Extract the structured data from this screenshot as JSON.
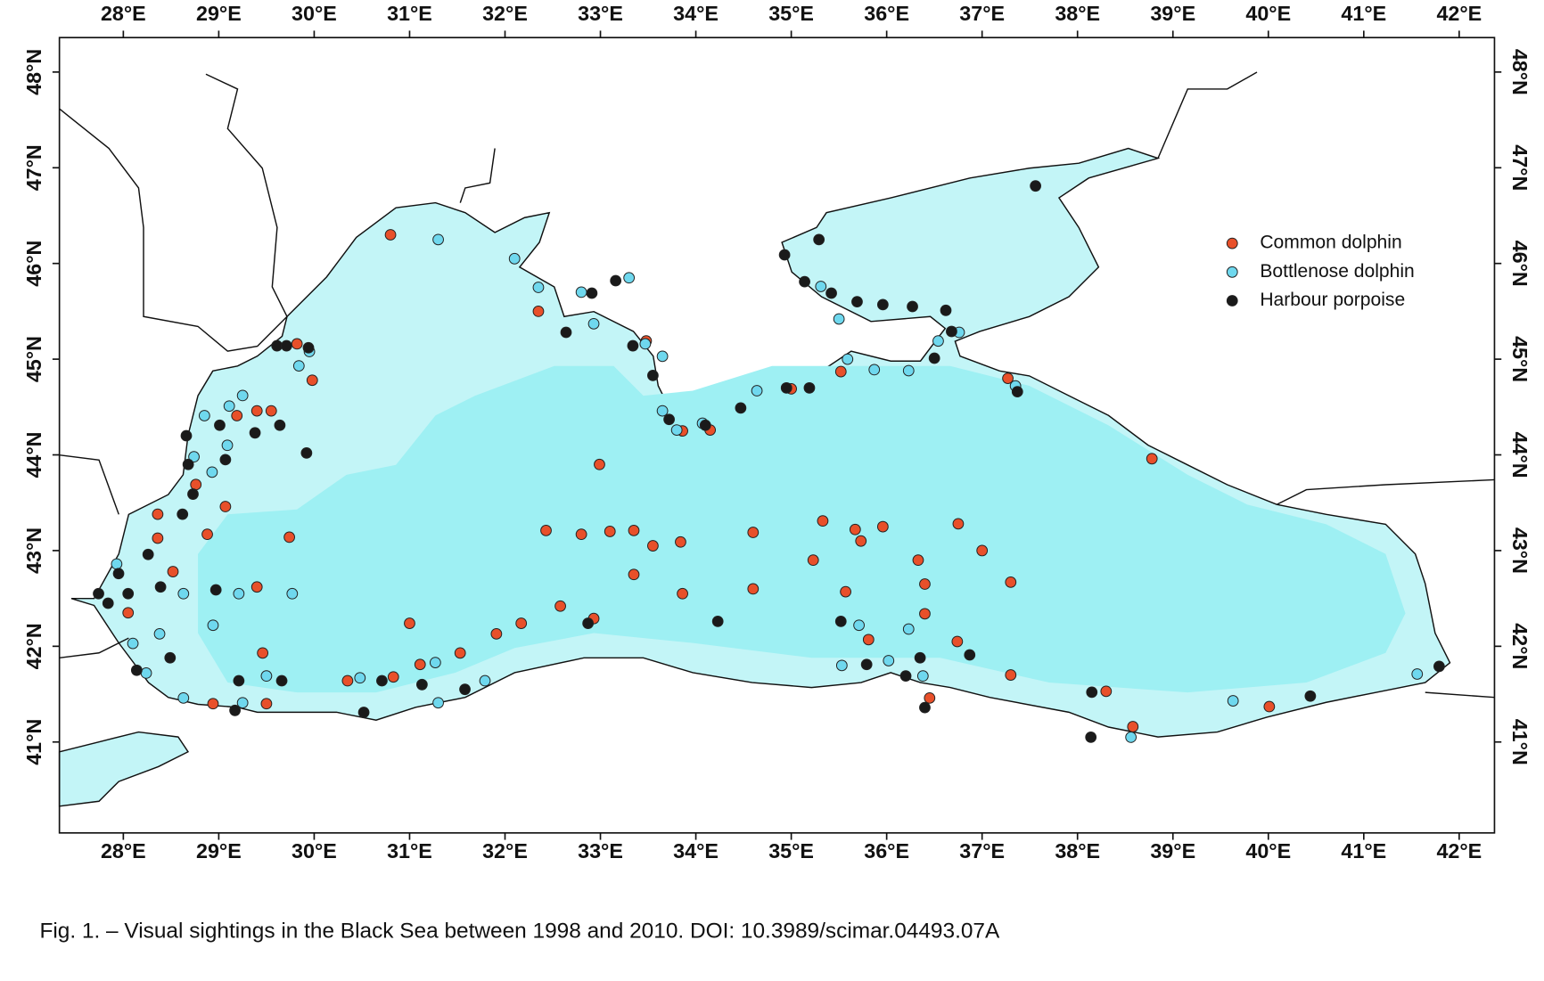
{
  "chart_data": {
    "type": "scatter",
    "caption": "Fig. 1. – Visual sightings in the Black Sea between 1998 and 2010. DOI: 10.3989/scimar.04493.07A",
    "xlim": [
      27.33,
      42.37
    ],
    "ylim": [
      40.05,
      48.36
    ],
    "xticks": [
      {
        "value": 28,
        "label": "28°E"
      },
      {
        "value": 29,
        "label": "29°E"
      },
      {
        "value": 30,
        "label": "30°E"
      },
      {
        "value": 31,
        "label": "31°E"
      },
      {
        "value": 32,
        "label": "32°E"
      },
      {
        "value": 33,
        "label": "33°E"
      },
      {
        "value": 34,
        "label": "34°E"
      },
      {
        "value": 35,
        "label": "35°E"
      },
      {
        "value": 36,
        "label": "36°E"
      },
      {
        "value": 37,
        "label": "37°E"
      },
      {
        "value": 38,
        "label": "38°E"
      },
      {
        "value": 39,
        "label": "39°E"
      },
      {
        "value": 40,
        "label": "40°E"
      },
      {
        "value": 41,
        "label": "41°E"
      },
      {
        "value": 42,
        "label": "42°E"
      }
    ],
    "yticks": [
      {
        "value": 41,
        "label": "41°N"
      },
      {
        "value": 42,
        "label": "42°N"
      },
      {
        "value": 43,
        "label": "43°N"
      },
      {
        "value": 44,
        "label": "44°N"
      },
      {
        "value": 45,
        "label": "45°N"
      },
      {
        "value": 46,
        "label": "46°N"
      },
      {
        "value": 47,
        "label": "47°N"
      },
      {
        "value": 48,
        "label": "48°N"
      }
    ],
    "legend": "upper right",
    "series": [
      {
        "name": "Common dolphin",
        "color": "#e8502a",
        "x": [
          30.8,
          32.35,
          32.43,
          32.8,
          33.1,
          33.35,
          33.55,
          33.84,
          34.6,
          35.33,
          35.67,
          35.96,
          36.75,
          37.0,
          36.33,
          36.4,
          35.73,
          35.23,
          34.6,
          33.86,
          33.35,
          32.93,
          32.58,
          32.17,
          31.91,
          31.53,
          31.11,
          30.83,
          30.35,
          31.0,
          29.74,
          29.07,
          28.88,
          29.4,
          29.46,
          29.5,
          28.94,
          28.52,
          28.05,
          28.36,
          29.19,
          29.4,
          29.82,
          29.98,
          29.55,
          28.76,
          28.36,
          37.3,
          37.3,
          38.3,
          38.58,
          40.01,
          38.78,
          37.27,
          35.52,
          35.0,
          36.45,
          36.74,
          36.4,
          33.86,
          34.15,
          35.57,
          35.81,
          32.99,
          33.48
        ],
        "values": [
          46.3,
          45.5,
          43.21,
          43.17,
          43.2,
          43.21,
          43.05,
          43.09,
          43.19,
          43.31,
          43.22,
          43.25,
          43.28,
          43.0,
          42.9,
          42.65,
          43.1,
          42.9,
          42.6,
          42.55,
          42.75,
          42.29,
          42.42,
          42.24,
          42.13,
          41.93,
          41.81,
          41.68,
          41.64,
          42.24,
          43.14,
          43.46,
          43.17,
          42.62,
          41.93,
          41.4,
          41.4,
          42.78,
          42.35,
          43.38,
          44.41,
          44.46,
          45.16,
          44.78,
          44.46,
          43.69,
          43.13,
          42.67,
          41.7,
          41.53,
          41.16,
          41.37,
          43.96,
          44.8,
          44.87,
          44.69,
          41.46,
          42.05,
          42.34,
          44.25,
          44.26,
          42.57,
          42.07,
          43.9,
          45.19
        ]
      },
      {
        "name": "Bottlenose dolphin",
        "color": "#6fd8ee",
        "x": [
          31.3,
          32.1,
          32.35,
          33.3,
          32.8,
          32.93,
          33.47,
          33.65,
          33.65,
          33.8,
          34.07,
          34.64,
          35.31,
          35.5,
          35.59,
          35.87,
          36.23,
          36.54,
          36.76,
          37.35,
          41.56,
          39.63,
          38.56,
          36.38,
          35.53,
          36.02,
          36.23,
          35.71,
          31.3,
          30.48,
          31.79,
          31.27,
          29.77,
          29.21,
          28.94,
          29.5,
          29.25,
          28.63,
          28.24,
          28.1,
          27.93,
          28.38,
          28.63,
          28.93,
          29.09,
          29.25,
          29.84,
          29.95,
          29.11,
          28.74,
          28.85
        ],
        "values": [
          46.25,
          46.05,
          45.75,
          45.85,
          45.7,
          45.37,
          45.16,
          45.03,
          44.46,
          44.26,
          44.33,
          44.67,
          45.76,
          45.42,
          45.0,
          44.89,
          44.88,
          45.19,
          45.28,
          44.72,
          41.71,
          41.43,
          41.05,
          41.69,
          41.8,
          41.85,
          42.18,
          42.22,
          41.41,
          41.67,
          41.64,
          41.83,
          42.55,
          42.55,
          42.22,
          41.69,
          41.41,
          41.46,
          41.72,
          42.03,
          42.86,
          42.13,
          42.55,
          43.82,
          44.1,
          44.62,
          44.93,
          45.08,
          44.51,
          43.98,
          44.41
        ]
      },
      {
        "name": "Harbour porpoise",
        "color": "#1a1a1a",
        "x": [
          37.56,
          35.29,
          34.93,
          35.14,
          35.42,
          35.69,
          35.96,
          36.27,
          36.62,
          36.68,
          36.5,
          37.37,
          32.91,
          33.16,
          32.64,
          33.34,
          33.55,
          33.72,
          34.1,
          34.47,
          34.95,
          35.19,
          41.79,
          40.44,
          38.15,
          38.14,
          36.87,
          36.35,
          36.2,
          36.4,
          35.79,
          35.52,
          34.23,
          32.87,
          31.13,
          30.71,
          31.58,
          30.52,
          29.66,
          29.21,
          29.17,
          28.49,
          28.14,
          28.97,
          28.39,
          29.92,
          29.64,
          29.61,
          29.71,
          29.94,
          29.38,
          29.07,
          29.01,
          28.66,
          28.73,
          28.62,
          28.26,
          27.95,
          27.74,
          27.84,
          28.05,
          28.68
        ],
        "values": [
          46.81,
          46.25,
          46.09,
          45.81,
          45.69,
          45.6,
          45.57,
          45.55,
          45.51,
          45.29,
          45.01,
          44.66,
          45.69,
          45.82,
          45.28,
          45.14,
          44.83,
          44.37,
          44.31,
          44.49,
          44.7,
          44.7,
          41.79,
          41.48,
          41.52,
          41.05,
          41.91,
          41.88,
          41.69,
          41.36,
          41.81,
          42.26,
          42.26,
          42.24,
          41.6,
          41.64,
          41.55,
          41.31,
          41.64,
          41.64,
          41.33,
          41.88,
          41.75,
          42.59,
          42.62,
          44.02,
          44.31,
          45.14,
          45.14,
          45.12,
          44.23,
          43.95,
          44.31,
          44.2,
          43.59,
          43.38,
          42.96,
          42.76,
          42.55,
          42.45,
          42.55,
          43.9
        ]
      }
    ]
  }
}
